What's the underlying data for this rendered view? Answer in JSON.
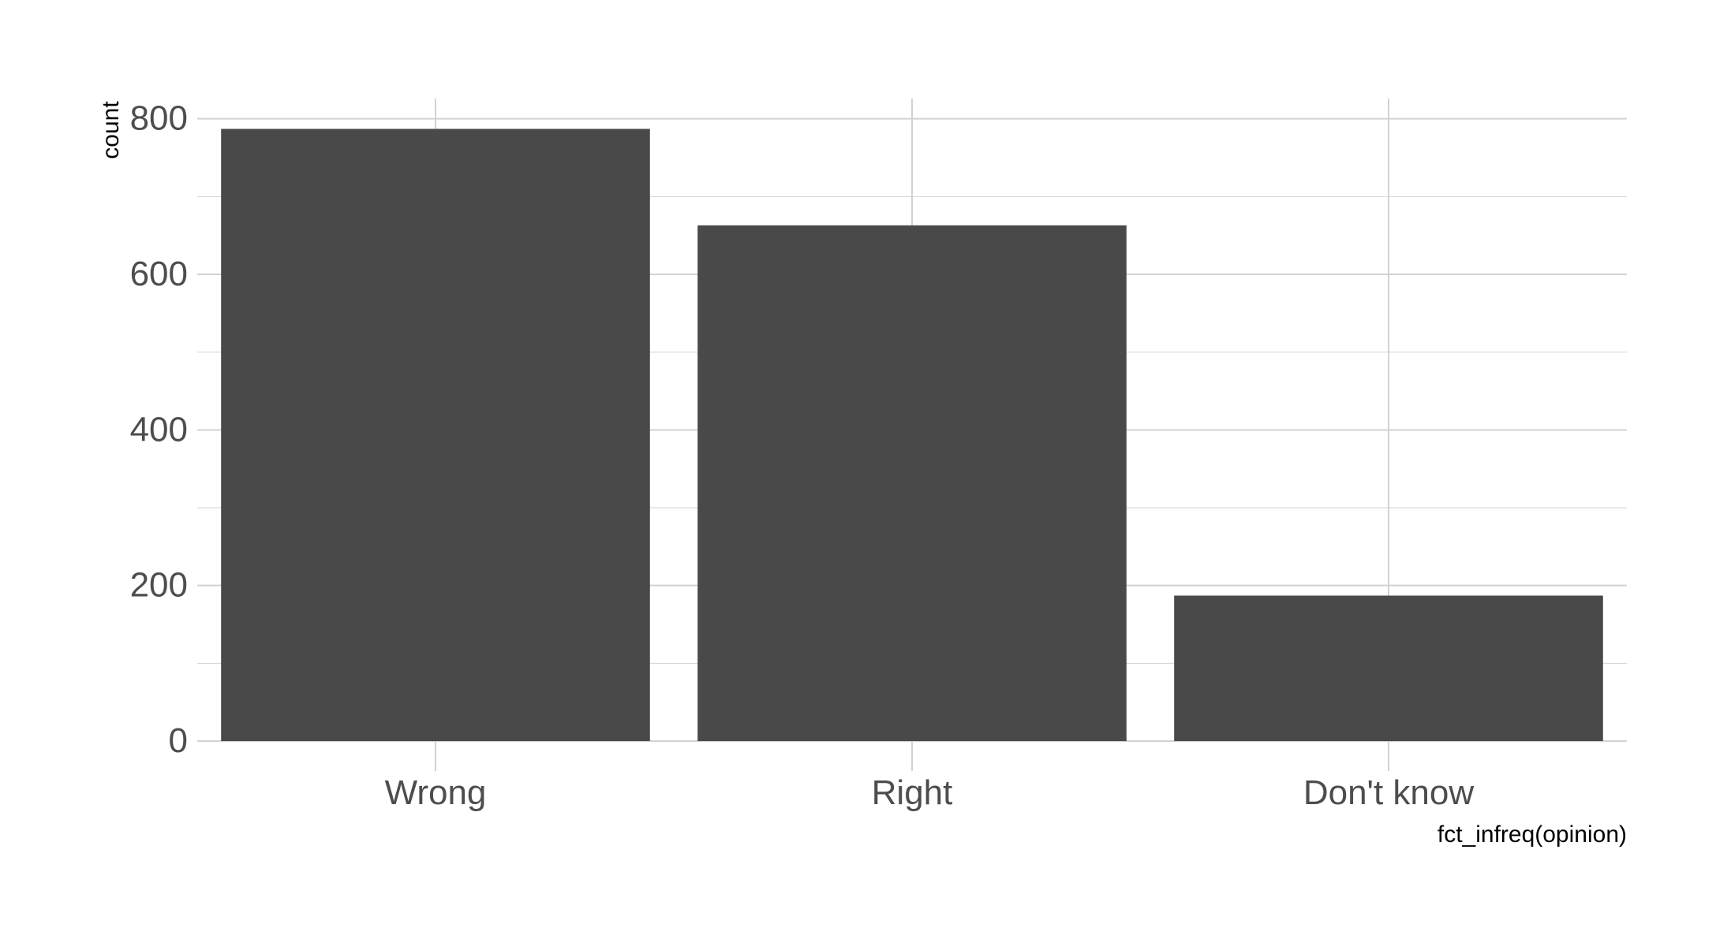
{
  "chart_data": {
    "type": "bar",
    "categories": [
      "Wrong",
      "Right",
      "Don't know"
    ],
    "values": [
      787,
      663,
      187
    ],
    "title": "",
    "xlabel": "fct_infreq(opinion)",
    "ylabel": "count",
    "ylim": [
      0,
      800
    ],
    "yticks": [
      0,
      200,
      400,
      600,
      800
    ],
    "grid": true,
    "legend": "none",
    "colors": {
      "bar": "#494949",
      "grid": "#d2d2d2",
      "tick_text": "#4d4d4d",
      "axis_title": "#000000"
    }
  }
}
